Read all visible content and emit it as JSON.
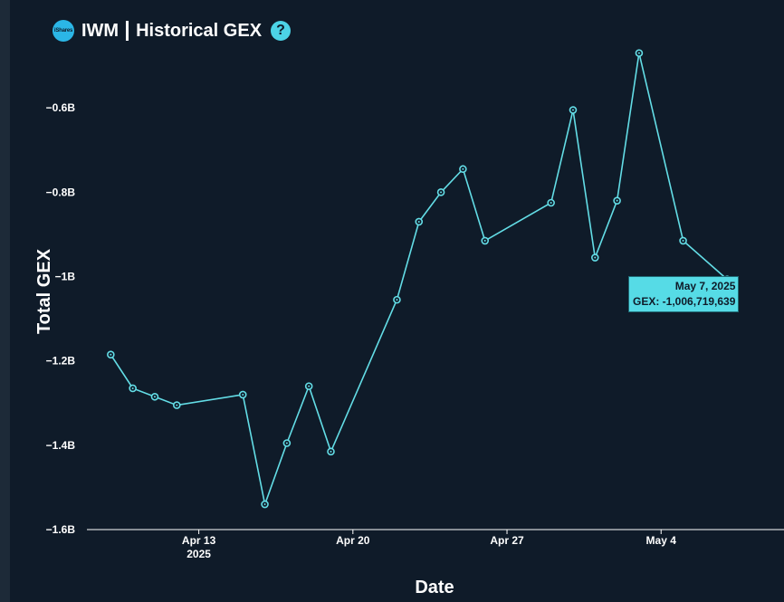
{
  "header": {
    "logo_text": "iShares",
    "ticker": "IWM",
    "title": "Historical GEX",
    "help_glyph": "?"
  },
  "chart_data": {
    "type": "line",
    "xlabel": "Date",
    "ylabel": "Total GEX",
    "y_ticks": [
      {
        "value": -0.6,
        "label": "−0.6B"
      },
      {
        "value": -0.8,
        "label": "−0.8B"
      },
      {
        "value": -1.0,
        "label": "−1B"
      },
      {
        "value": -1.2,
        "label": "−1.2B"
      },
      {
        "value": -1.4,
        "label": "−1.4B"
      },
      {
        "value": -1.6,
        "label": "−1.6B"
      }
    ],
    "x_ticks": [
      {
        "date": "2025-04-13",
        "label": "Apr 13",
        "sublabel": "2025"
      },
      {
        "date": "2025-04-20",
        "label": "Apr 20",
        "sublabel": ""
      },
      {
        "date": "2025-04-27",
        "label": "Apr 27",
        "sublabel": ""
      },
      {
        "date": "2025-05-04",
        "label": "May 4",
        "sublabel": ""
      }
    ],
    "xlim": [
      "2025-04-07T22:00",
      "2025-05-09T14:00"
    ],
    "ylim": [
      -1.6,
      -0.43
    ],
    "line_color": "#63dde6",
    "series": [
      {
        "points": [
          {
            "date": "2025-04-09",
            "value": -1.185
          },
          {
            "date": "2025-04-10",
            "value": -1.265
          },
          {
            "date": "2025-04-11",
            "value": -1.285
          },
          {
            "date": "2025-04-12",
            "value": -1.305
          },
          {
            "date": "2025-04-15",
            "value": -1.28
          },
          {
            "date": "2025-04-16",
            "value": -1.54
          },
          {
            "date": "2025-04-17",
            "value": -1.395
          },
          {
            "date": "2025-04-18",
            "value": -1.26
          },
          {
            "date": "2025-04-19",
            "value": -1.415
          },
          {
            "date": "2025-04-22",
            "value": -1.055
          },
          {
            "date": "2025-04-23",
            "value": -0.87
          },
          {
            "date": "2025-04-24",
            "value": -0.8
          },
          {
            "date": "2025-04-25",
            "value": -0.745
          },
          {
            "date": "2025-04-26",
            "value": -0.915
          },
          {
            "date": "2025-04-29",
            "value": -0.825
          },
          {
            "date": "2025-04-30",
            "value": -0.605
          },
          {
            "date": "2025-05-01",
            "value": -0.955
          },
          {
            "date": "2025-05-02",
            "value": -0.82
          },
          {
            "date": "2025-05-03",
            "value": -0.47
          },
          {
            "date": "2025-05-05",
            "value": -0.915
          },
          {
            "date": "2025-05-07",
            "value": -1.006719639
          }
        ]
      }
    ],
    "tooltip": {
      "date": "May 7, 2025",
      "value": "GEX: -1,006,719,639"
    }
  }
}
